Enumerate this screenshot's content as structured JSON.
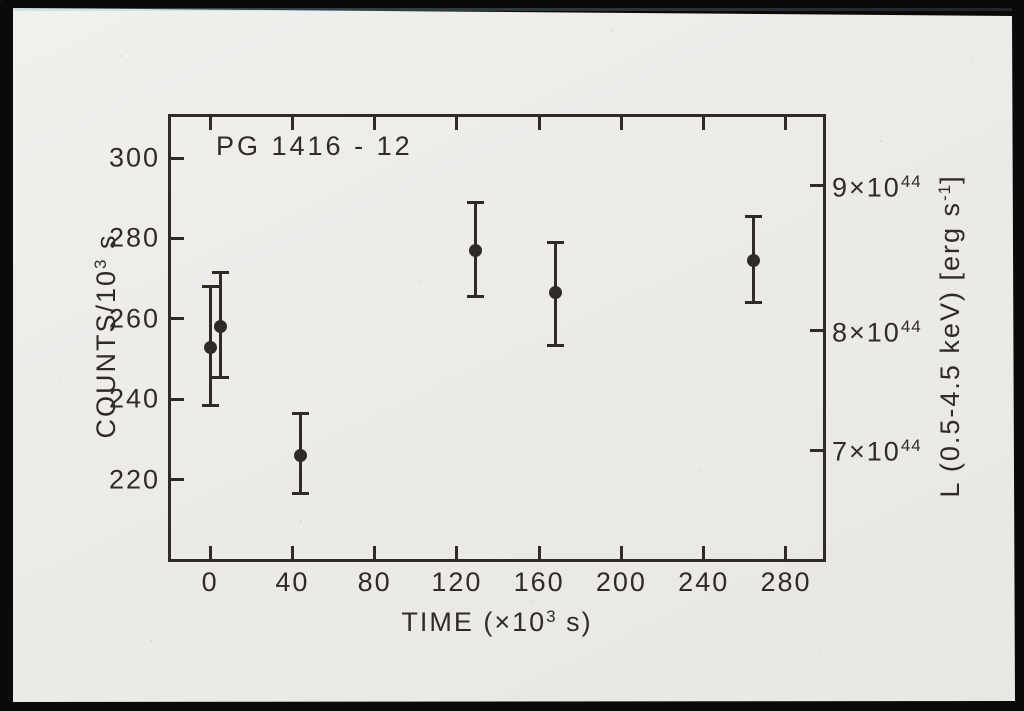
{
  "frame": {
    "border_color": "#0a0a0a",
    "paper_color": "#edebe8",
    "ink_color": "#2e2b28"
  },
  "chart_data": {
    "type": "scatter",
    "title": "PG 1416 - 12",
    "xlabel": {
      "base": "TIME (×10",
      "sup": "3",
      "suffix": " s)"
    },
    "ylabel_left": {
      "base": "COUNTS/10",
      "sup": "3",
      "suffix": " s"
    },
    "ylabel_right": {
      "base": "L (0.5-4.5 keV) [erg s",
      "sup": "-1",
      "suffix": "]"
    },
    "xlim": [
      -19,
      298
    ],
    "ylim": [
      200.3,
      310.2
    ],
    "grid": false,
    "x_ticks": [
      0,
      40,
      80,
      120,
      160,
      200,
      240,
      280
    ],
    "y_ticks_left": [
      300,
      280,
      260,
      240,
      220
    ],
    "y_ticks_right": [
      {
        "base": "9×10",
        "sup": "44",
        "frac": 0.156
      },
      {
        "base": "8×10",
        "sup": "44",
        "frac": 0.484
      },
      {
        "base": "7×10",
        "sup": "44",
        "frac": 0.754
      }
    ],
    "points": [
      {
        "t": 0,
        "counts": 253,
        "lo": 238.5,
        "hi": 268
      },
      {
        "t": 5,
        "counts": 258,
        "lo": 245.5,
        "hi": 271.5
      },
      {
        "t": 44,
        "counts": 226,
        "lo": 216.5,
        "hi": 236.5
      },
      {
        "t": 129,
        "counts": 277,
        "lo": 265.5,
        "hi": 289
      },
      {
        "t": 168,
        "counts": 266.5,
        "lo": 253.5,
        "hi": 279
      },
      {
        "t": 264,
        "counts": 274.5,
        "lo": 264,
        "hi": 285.5
      }
    ]
  }
}
